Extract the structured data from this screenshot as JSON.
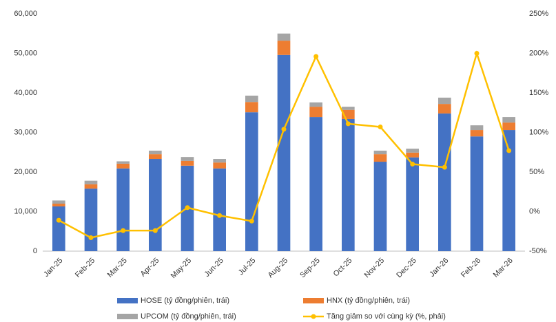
{
  "chart_data": {
    "type": "bar_line",
    "categories": [
      "Jan-25",
      "Feb-25",
      "Mar-25",
      "Apr-25",
      "May-25",
      "Jun-25",
      "Jul-25",
      "Aug-25",
      "Sep-25",
      "Oct-25",
      "Nov-25",
      "Dec-25",
      "Jan-26",
      "Feb-26",
      "Mar-26"
    ],
    "series": [
      {
        "name": "HOSE (tỷ đồng/phiên, trái)",
        "color": "#4472c4",
        "type": "bar",
        "values": [
          11300,
          15800,
          20900,
          23300,
          21600,
          20900,
          35100,
          49600,
          33900,
          33400,
          22600,
          23700,
          34800,
          29000,
          30600
        ]
      },
      {
        "name": "HNX (tỷ đồng/phiên, trái)",
        "color": "#ed7d31",
        "type": "bar",
        "values": [
          700,
          1100,
          1200,
          1200,
          1200,
          1500,
          2600,
          3600,
          2600,
          2300,
          1900,
          1200,
          2400,
          1600,
          1900
        ]
      },
      {
        "name": "UPCOM (tỷ đồng/phiên, trái)",
        "color": "#a5a5a5",
        "type": "bar",
        "values": [
          800,
          900,
          600,
          900,
          1000,
          900,
          1600,
          1800,
          1100,
          800,
          900,
          1000,
          1600,
          1200,
          1400
        ]
      },
      {
        "name": "Tăng giảm so với cùng kỳ (%, phải)",
        "color": "#ffc000",
        "type": "line",
        "axis": "y2",
        "values": [
          -11,
          -33,
          -24,
          -24,
          5,
          -5,
          -12,
          104,
          196,
          111,
          107,
          60,
          56,
          200,
          77
        ]
      }
    ],
    "ylim": [
      0,
      60000
    ],
    "yticks": [
      0,
      {
        "value": 10000,
        "label": "10,000"
      },
      {
        "value": 20000,
        "label": "20,000"
      },
      {
        "value": 30000,
        "label": "30,000"
      },
      {
        "value": 40000,
        "label": "40,000"
      },
      {
        "value": 50000,
        "label": "50,000"
      },
      {
        "value": 60000,
        "label": "60,000"
      }
    ],
    "y2lim": [
      -50,
      250
    ],
    "y2ticks": [
      {
        "value": -50,
        "label": "-50%"
      },
      {
        "value": 0,
        "label": "0%"
      },
      {
        "value": 50,
        "label": "50%"
      },
      {
        "value": 100,
        "label": "100%"
      },
      {
        "value": 150,
        "label": "150%"
      },
      {
        "value": 200,
        "label": "200%"
      },
      {
        "value": 250,
        "label": "250%"
      }
    ],
    "grid": false,
    "legend": "bottom"
  }
}
